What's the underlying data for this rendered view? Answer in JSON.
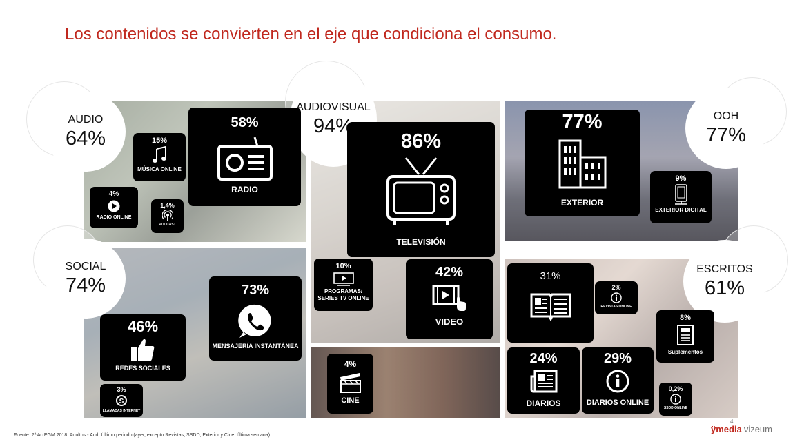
{
  "title": "Los contenidos se convierten en el eje que condiciona el consumo.",
  "categories": {
    "audio": {
      "label": "AUDIO",
      "value": "64%"
    },
    "audiovisual": {
      "label": "AUDIOVISUAL",
      "value": "94%"
    },
    "ooh": {
      "label": "OOH",
      "value": "77%"
    },
    "social": {
      "label": "SOCIAL",
      "value": "74%"
    },
    "escritos": {
      "label": "ESCRITOS",
      "value": "61%"
    }
  },
  "media": {
    "radio": {
      "value": "58%",
      "label": "RADIO",
      "icon": "radio-icon"
    },
    "musica_online": {
      "value": "15%",
      "label": "MÚSICA ONLINE",
      "icon": "music-note-icon"
    },
    "radio_online": {
      "value": "4%",
      "label": "RADIO ONLINE",
      "icon": "play-icon"
    },
    "podcast": {
      "value": "1,4%",
      "label": "PODCAST",
      "icon": "podcast-icon"
    },
    "television": {
      "value": "86%",
      "label": "TELEVISIÓN",
      "icon": "tv-icon"
    },
    "programas": {
      "value": "10%",
      "label": "PROGRAMAS/ SERIES TV ONLINE",
      "icon": "monitor-play-icon"
    },
    "video": {
      "value": "42%",
      "label": "VIDEO",
      "icon": "video-touch-icon"
    },
    "cine": {
      "value": "4%",
      "label": "CINE",
      "icon": "clapperboard-icon"
    },
    "exterior": {
      "value": "77%",
      "label": "EXTERIOR",
      "icon": "building-icon"
    },
    "exterior_digital": {
      "value": "9%",
      "label": "EXTERIOR DIGITAL",
      "icon": "digital-sign-icon"
    },
    "mensajeria": {
      "value": "73%",
      "label": "MENSAJERÍA INSTANTÁNEA",
      "icon": "whatsapp-icon"
    },
    "redes_sociales": {
      "value": "46%",
      "label": "REDES SOCIALES",
      "icon": "thumbs-up-icon"
    },
    "llamadas": {
      "value": "3%",
      "label": "LLAMADAS INTERNET",
      "icon": "skype-icon"
    },
    "revistas_grande": {
      "value": "31%",
      "icon": "open-book-icon"
    },
    "revistas_online": {
      "value": "2%",
      "label": "REVISTAS ONLINE",
      "icon": "info-icon"
    },
    "suplementos": {
      "value": "8%",
      "label": "Suplementos",
      "icon": "supplement-icon"
    },
    "diarios": {
      "value": "24%",
      "label": "DIARIOS",
      "icon": "newspaper-icon"
    },
    "diarios_online": {
      "value": "29%",
      "label": "DIARIOS ONLINE",
      "icon": "info-icon"
    },
    "ssdd_online": {
      "value": "0,2%",
      "label": "SSDD ONLINE",
      "icon": "info-icon"
    }
  },
  "footer": {
    "source": "Fuente: 2ª Ac EGM 2018. Adultos - Aud. Último periodo (ayer, excepto Revistas, SSDD, Exterior y Cine: última semana)",
    "page": "4",
    "logo_brand": "ÿmedia",
    "logo_sub": "vizeum"
  },
  "colors": {
    "title": "#c0281e",
    "box": "#000000",
    "accent": "#c0281e"
  }
}
